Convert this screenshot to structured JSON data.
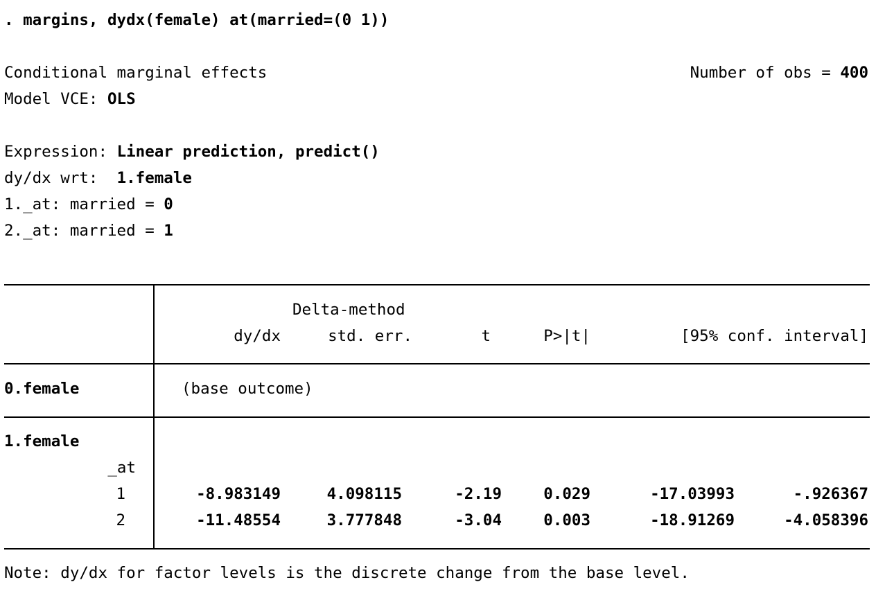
{
  "command": ". margins, dydx(female) at(married=(0 1))",
  "header": {
    "title": "Conditional marginal effects",
    "nobs_label": "Number of obs = ",
    "nobs_value": "400",
    "vce_label": "Model VCE: ",
    "vce_value": "OLS",
    "expression_label": "Expression: ",
    "expression_value": "Linear prediction, predict()",
    "wrt_label": "dy/dx wrt:  ",
    "wrt_value": "1.female",
    "at1_label": "1._at: married = ",
    "at1_value": "0",
    "at2_label": "2._at: married = ",
    "at2_value": "1"
  },
  "table": {
    "supheader": "Delta-method",
    "columns": [
      "dy/dx",
      "std. err.",
      "t",
      "P>|t|",
      "[95% conf. interval]"
    ],
    "base_row_label": "0.female",
    "base_row_text": "(base outcome)",
    "group_label": "1.female",
    "sub_label": "_at",
    "rows": [
      {
        "label": "1",
        "dydx": "-8.983149",
        "se": "4.098115",
        "t": "-2.19",
        "p": "0.029",
        "lo": "-17.03993",
        "hi": "-.926367"
      },
      {
        "label": "2",
        "dydx": "-11.48554",
        "se": "3.777848",
        "t": "-3.04",
        "p": "0.003",
        "lo": "-18.91269",
        "hi": "-4.058396"
      }
    ]
  },
  "note": "Note: dy/dx for factor levels is the discrete change from the base level."
}
